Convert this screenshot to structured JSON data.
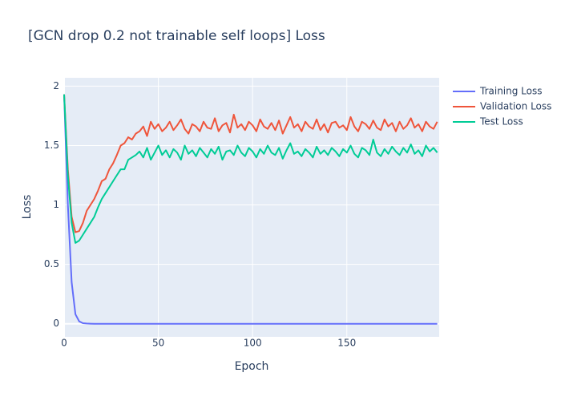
{
  "chart_data": {
    "type": "line",
    "title": "[GCN drop 0.2 not trainable self loops] Loss",
    "x_label": "Epoch",
    "y_label": "Loss",
    "x": [
      0,
      2,
      4,
      6,
      8,
      10,
      12,
      14,
      16,
      18,
      20,
      22,
      24,
      26,
      28,
      30,
      32,
      34,
      36,
      38,
      40,
      42,
      44,
      46,
      48,
      50,
      52,
      54,
      56,
      58,
      60,
      62,
      64,
      66,
      68,
      70,
      72,
      74,
      76,
      78,
      80,
      82,
      84,
      86,
      88,
      90,
      92,
      94,
      96,
      98,
      100,
      102,
      104,
      106,
      108,
      110,
      112,
      114,
      116,
      118,
      120,
      122,
      124,
      126,
      128,
      130,
      132,
      134,
      136,
      138,
      140,
      142,
      144,
      146,
      148,
      150,
      152,
      154,
      156,
      158,
      160,
      162,
      164,
      166,
      168,
      170,
      172,
      174,
      176,
      178,
      180,
      182,
      184,
      186,
      188,
      190,
      192,
      194,
      196,
      198
    ],
    "series": [
      {
        "name": "Training Loss",
        "color": "#636efa",
        "values": [
          1.93,
          1.0,
          0.35,
          0.08,
          0.02,
          0.005,
          0.002,
          0.001,
          0,
          0,
          0,
          0,
          0,
          0,
          0,
          0,
          0,
          0,
          0,
          0,
          0,
          0,
          0,
          0,
          0,
          0,
          0,
          0,
          0,
          0,
          0,
          0,
          0,
          0,
          0,
          0,
          0,
          0,
          0,
          0,
          0,
          0,
          0,
          0,
          0,
          0,
          0,
          0,
          0,
          0,
          0,
          0,
          0,
          0,
          0,
          0,
          0,
          0,
          0,
          0,
          0,
          0,
          0,
          0,
          0,
          0,
          0,
          0,
          0,
          0,
          0,
          0,
          0,
          0,
          0,
          0,
          0,
          0,
          0,
          0,
          0,
          0,
          0,
          0,
          0,
          0,
          0,
          0,
          0,
          0,
          0,
          0,
          0,
          0,
          0,
          0,
          0,
          0,
          0,
          0
        ]
      },
      {
        "name": "Validation Loss",
        "color": "#ef553b",
        "values": [
          1.93,
          1.3,
          0.9,
          0.77,
          0.78,
          0.85,
          0.95,
          1.0,
          1.05,
          1.12,
          1.2,
          1.22,
          1.3,
          1.35,
          1.42,
          1.5,
          1.52,
          1.57,
          1.55,
          1.6,
          1.62,
          1.66,
          1.58,
          1.7,
          1.64,
          1.68,
          1.62,
          1.65,
          1.7,
          1.63,
          1.67,
          1.72,
          1.64,
          1.6,
          1.68,
          1.66,
          1.62,
          1.7,
          1.65,
          1.64,
          1.73,
          1.62,
          1.67,
          1.69,
          1.61,
          1.76,
          1.65,
          1.68,
          1.63,
          1.7,
          1.67,
          1.62,
          1.72,
          1.66,
          1.64,
          1.69,
          1.63,
          1.71,
          1.6,
          1.67,
          1.74,
          1.65,
          1.68,
          1.62,
          1.7,
          1.66,
          1.64,
          1.72,
          1.63,
          1.68,
          1.61,
          1.69,
          1.7,
          1.65,
          1.67,
          1.63,
          1.74,
          1.66,
          1.62,
          1.7,
          1.68,
          1.64,
          1.71,
          1.65,
          1.63,
          1.72,
          1.66,
          1.69,
          1.62,
          1.7,
          1.64,
          1.67,
          1.73,
          1.65,
          1.68,
          1.62,
          1.7,
          1.66,
          1.64,
          1.7
        ]
      },
      {
        "name": "Test Loss",
        "color": "#00cc96",
        "values": [
          1.93,
          1.25,
          0.85,
          0.68,
          0.7,
          0.75,
          0.8,
          0.85,
          0.9,
          0.98,
          1.05,
          1.1,
          1.15,
          1.2,
          1.25,
          1.3,
          1.3,
          1.38,
          1.4,
          1.42,
          1.45,
          1.4,
          1.48,
          1.38,
          1.44,
          1.5,
          1.42,
          1.46,
          1.4,
          1.47,
          1.44,
          1.38,
          1.5,
          1.43,
          1.46,
          1.41,
          1.48,
          1.44,
          1.4,
          1.47,
          1.43,
          1.49,
          1.38,
          1.45,
          1.46,
          1.42,
          1.5,
          1.44,
          1.41,
          1.48,
          1.45,
          1.4,
          1.47,
          1.43,
          1.5,
          1.44,
          1.42,
          1.48,
          1.39,
          1.46,
          1.52,
          1.43,
          1.45,
          1.41,
          1.47,
          1.44,
          1.4,
          1.49,
          1.43,
          1.46,
          1.42,
          1.48,
          1.45,
          1.41,
          1.47,
          1.44,
          1.5,
          1.43,
          1.4,
          1.48,
          1.46,
          1.42,
          1.55,
          1.44,
          1.41,
          1.47,
          1.43,
          1.49,
          1.45,
          1.42,
          1.48,
          1.44,
          1.51,
          1.43,
          1.46,
          1.41,
          1.5,
          1.45,
          1.48,
          1.44
        ]
      }
    ],
    "xlim": [
      0,
      199
    ],
    "xticks": [
      0,
      50,
      100,
      150
    ],
    "ylim": [
      -0.11,
      2.07
    ],
    "yticks": [
      0,
      0.5,
      1,
      1.5,
      2
    ],
    "grid": true,
    "legend": "outside-right"
  }
}
